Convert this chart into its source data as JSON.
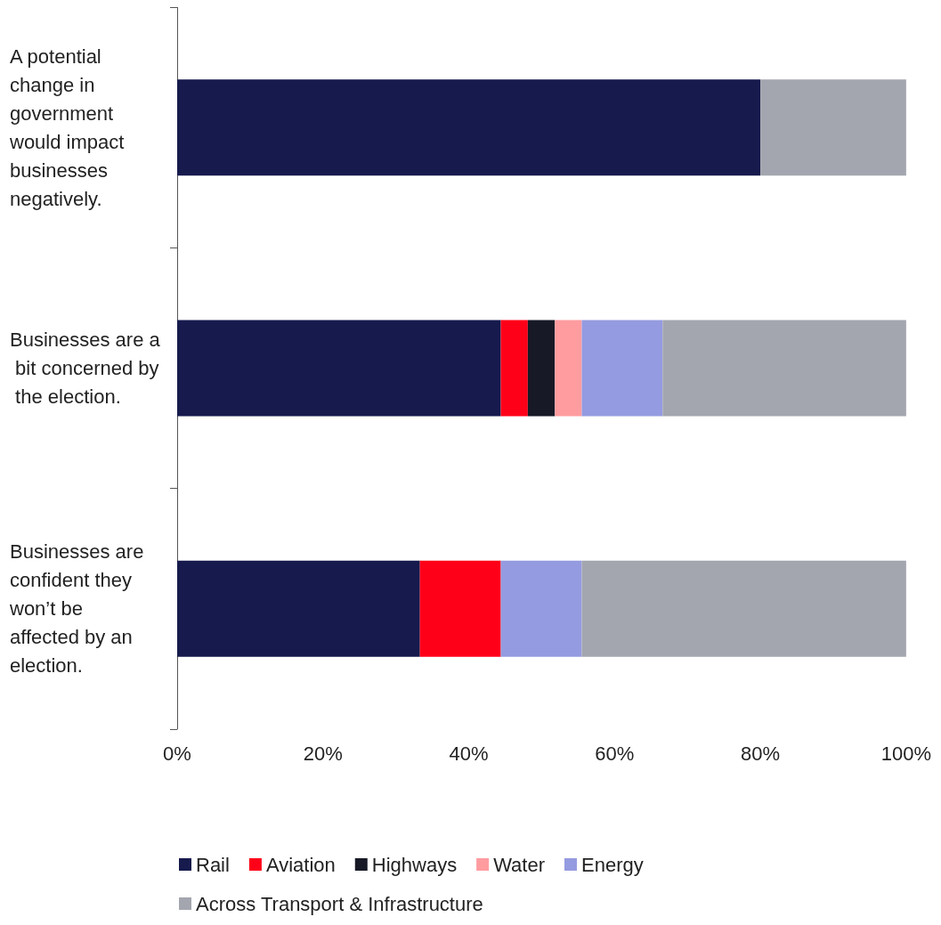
{
  "chart_data": {
    "type": "bar",
    "orientation": "horizontal",
    "stacked": true,
    "categories": [
      "A potential change in government would impact businesses negatively.",
      "Businesses are a bit concerned by the election.",
      "Businesses are confident they won’t be affected by an election."
    ],
    "series": [
      {
        "name": "Rail",
        "color": "#161a4d",
        "values": [
          80,
          44.4,
          33.3
        ]
      },
      {
        "name": "Aviation",
        "color": "#ff0019",
        "values": [
          0,
          3.7,
          11.1
        ]
      },
      {
        "name": "Highways",
        "color": "#171a26",
        "values": [
          0,
          3.7,
          0
        ]
      },
      {
        "name": "Water",
        "color": "#ff9ca0",
        "values": [
          0,
          3.7,
          0
        ]
      },
      {
        "name": "Energy",
        "color": "#959be0",
        "values": [
          0,
          11.1,
          11.1
        ]
      },
      {
        "name": "Across Transport & Infrastructure",
        "color": "#a3a6ae",
        "values": [
          20,
          33.4,
          44.5
        ]
      }
    ],
    "xlim": [
      0,
      100
    ],
    "xticks": [
      {
        "value": 0,
        "label": "0%"
      },
      {
        "value": 20,
        "label": "20%"
      },
      {
        "value": 40,
        "label": "40%"
      },
      {
        "value": 60,
        "label": "60%"
      },
      {
        "value": 80,
        "label": "80%"
      },
      {
        "value": 100,
        "label": "100%"
      }
    ],
    "grid": false,
    "legend": "bottom"
  }
}
